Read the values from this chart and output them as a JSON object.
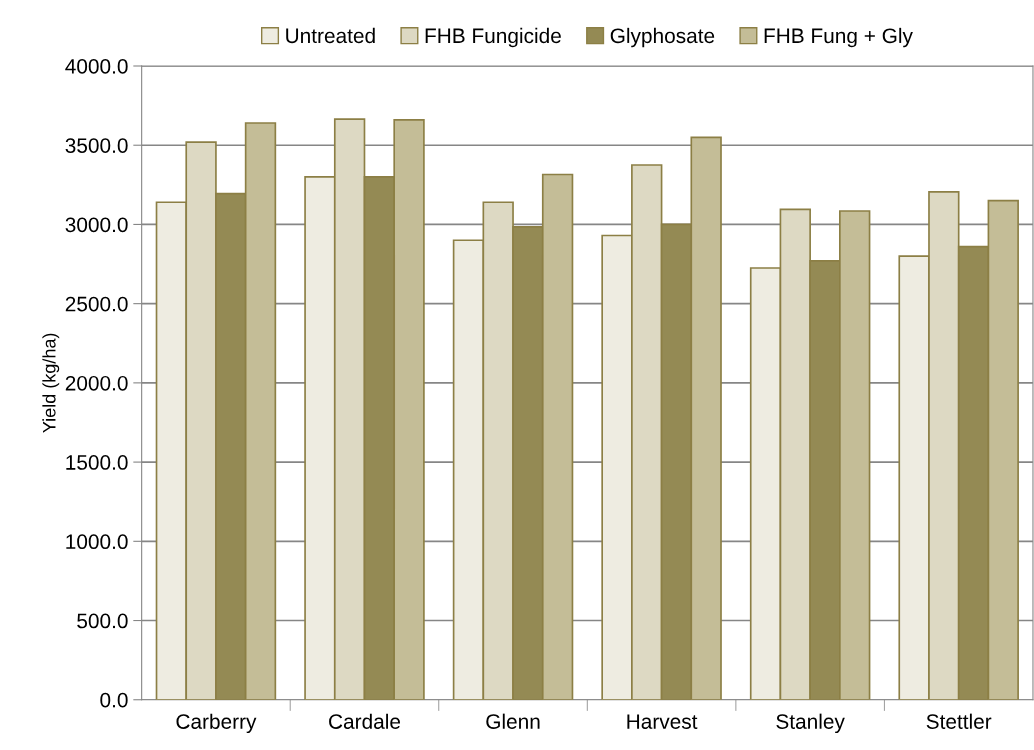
{
  "chart_data": {
    "type": "bar",
    "ylabel": "Yield (kg/ha)",
    "categories": [
      "Carberry",
      "Cardale",
      "Glenn",
      "Harvest",
      "Stanley",
      "Stettler"
    ],
    "series": [
      {
        "name": "Untreated",
        "color": "#eeece1",
        "values": [
          3140,
          3300,
          2900,
          2930,
          2725,
          2800
        ]
      },
      {
        "name": "FHB Fungicide",
        "color": "#ddd9c3",
        "values": [
          3520,
          3665,
          3140,
          3375,
          3095,
          3205
        ]
      },
      {
        "name": "Glyphosate",
        "color": "#948a54",
        "values": [
          3195,
          3300,
          2985,
          3000,
          2770,
          2860
        ]
      },
      {
        "name": "FHB Fung + Gly",
        "color": "#c4bd97",
        "values": [
          3640,
          3660,
          3315,
          3550,
          3085,
          3150
        ]
      }
    ],
    "ylim": [
      0,
      4000
    ],
    "yticks": [
      {
        "value": 0,
        "label": "0.0"
      },
      {
        "value": 500,
        "label": "500.0"
      },
      {
        "value": 1000,
        "label": "1000.0"
      },
      {
        "value": 1500,
        "label": "1500.0"
      },
      {
        "value": 2000,
        "label": "2000.0"
      },
      {
        "value": 2500,
        "label": "2500.0"
      },
      {
        "value": 3000,
        "label": "3000.0"
      },
      {
        "value": 3500,
        "label": "3500.0"
      },
      {
        "value": 4000,
        "label": "4000.0"
      }
    ],
    "grid": "y",
    "legend": "top"
  }
}
